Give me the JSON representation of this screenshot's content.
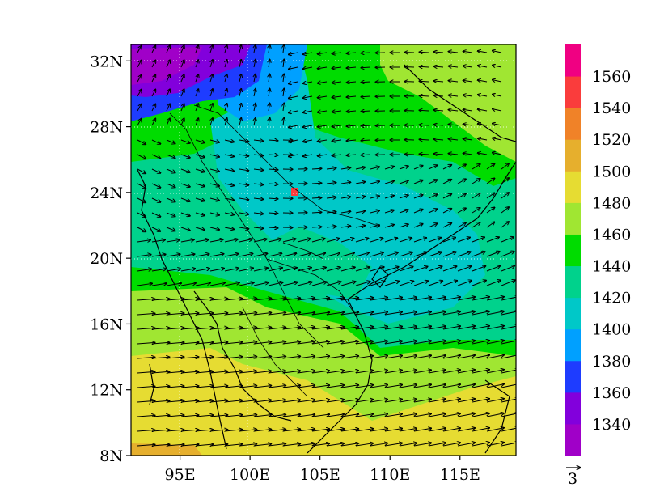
{
  "map": {
    "lat_ticks": [
      "32N",
      "28N",
      "24N",
      "20N",
      "16N",
      "12N",
      "8N"
    ],
    "lon_ticks": [
      "95E",
      "100E",
      "105E",
      "110E",
      "115E"
    ],
    "lat_range": [
      8,
      33
    ],
    "lon_range": [
      91.5,
      119
    ],
    "grid_lines": true,
    "field": "geopotential height with wind vectors"
  },
  "colorbar": {
    "levels": [
      "1340",
      "1360",
      "1380",
      "1400",
      "1420",
      "1440",
      "1460",
      "1480",
      "1500",
      "1520",
      "1540",
      "1560"
    ],
    "colors": [
      "#a000c8",
      "#8200dc",
      "#1e3cff",
      "#00a0ff",
      "#00c8c8",
      "#00d28c",
      "#00dc00",
      "#a0e632",
      "#e6dc32",
      "#e6af2d",
      "#f08228",
      "#fa3c3c",
      "#f00082"
    ]
  },
  "vector_reference": {
    "label": "3"
  },
  "chart_data": {
    "type": "heatmap",
    "title": "",
    "xlabel": "",
    "ylabel": "",
    "x_ticks": [
      "95E",
      "100E",
      "105E",
      "110E",
      "115E"
    ],
    "y_ticks": [
      "8N",
      "12N",
      "16N",
      "20N",
      "24N",
      "28N",
      "32N"
    ],
    "contour_levels": [
      1340,
      1360,
      1380,
      1400,
      1420,
      1440,
      1460,
      1480,
      1500,
      1520,
      1540,
      1560
    ],
    "legend": "right colorbar",
    "reference_vector": 3
  }
}
